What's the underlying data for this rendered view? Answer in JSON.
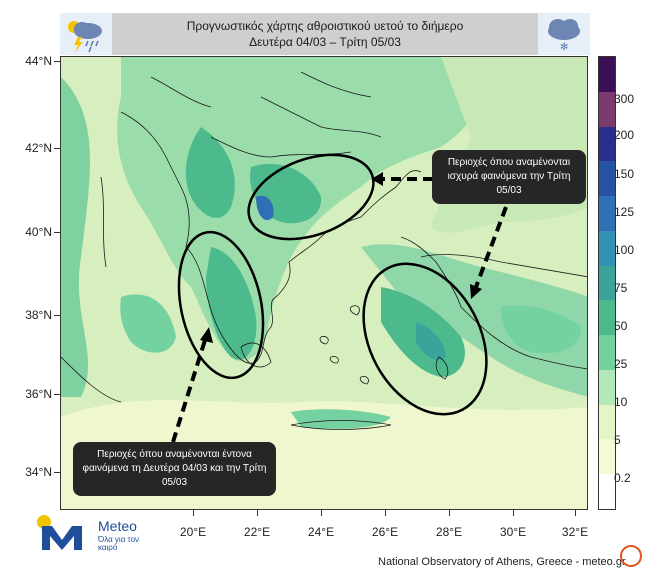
{
  "header": {
    "title_line1": "Προγνωστικός χάρτης αθροιστικού υετού το διήμερο",
    "title_line2": "Δευτέρα 04/03 – Τρίτη 05/03",
    "left_icon": "storm-cloud-icon",
    "right_icon": "snow-cloud-icon"
  },
  "axes": {
    "lat_labels": [
      "44°N",
      "42°N",
      "40°N",
      "38°N",
      "36°N",
      "34°N"
    ],
    "lon_labels": [
      "20°E",
      "22°E",
      "24°E",
      "26°E",
      "28°E",
      "30°E",
      "32°E"
    ]
  },
  "legend": {
    "labels": [
      "300",
      "200",
      "150",
      "125",
      "100",
      "75",
      "50",
      "25",
      "10",
      "5",
      "0.2"
    ],
    "colors": [
      "#3b0f55",
      "#7a3c6e",
      "#2a2f8e",
      "#2453a6",
      "#2e6fb5",
      "#3191b7",
      "#3aa49b",
      "#4dba8d",
      "#74d1a0",
      "#b2e8b8",
      "#e6f5c6",
      "#f4f9d6",
      "#ffffff"
    ]
  },
  "callouts": {
    "right": "Περιοχές όπου αναμένονται ισχυρά φαινόμενα την Τρίτη 05/03",
    "left": "Περιοχές όπου αναμένονται έντονα φαινόμενα τη Δευτέρα 04/03 και την Τρίτη 05/03"
  },
  "logo": {
    "name": "Meteo",
    "tagline": "Όλα για τον καιρό"
  },
  "footer": {
    "source": "National Observatory of Athens, Greece - meteo.gr"
  }
}
